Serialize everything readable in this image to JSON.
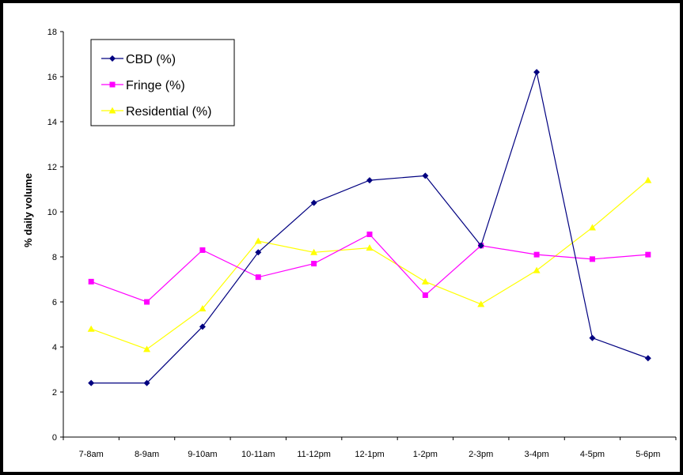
{
  "chart_data": {
    "type": "line",
    "title": "",
    "xlabel": "",
    "ylabel": "% daily volume",
    "ylim": [
      0,
      18
    ],
    "yticks": [
      0,
      2,
      4,
      6,
      8,
      10,
      12,
      14,
      16,
      18
    ],
    "grid": false,
    "legend_position": "top-left",
    "categories": [
      "7-8am",
      "8-9am",
      "9-10am",
      "10-11am",
      "11-12pm",
      "12-1pm",
      "1-2pm",
      "2-3pm",
      "3-4pm",
      "4-5pm",
      "5-6pm"
    ],
    "series": [
      {
        "name": "CBD (%)",
        "color": "#000080",
        "marker": "diamond",
        "values": [
          2.4,
          2.4,
          4.9,
          8.2,
          10.4,
          11.4,
          11.6,
          8.5,
          16.2,
          4.4,
          3.5
        ]
      },
      {
        "name": "Fringe (%)",
        "color": "#FF00FF",
        "marker": "square",
        "values": [
          6.9,
          6.0,
          8.3,
          7.1,
          7.7,
          9.0,
          6.3,
          8.5,
          8.1,
          7.9,
          8.1
        ]
      },
      {
        "name": "Residential (%)",
        "color": "#FFFF00",
        "marker": "triangle",
        "values": [
          4.8,
          3.9,
          5.7,
          8.7,
          8.2,
          8.4,
          6.9,
          5.9,
          7.4,
          9.3,
          11.4
        ]
      }
    ]
  }
}
